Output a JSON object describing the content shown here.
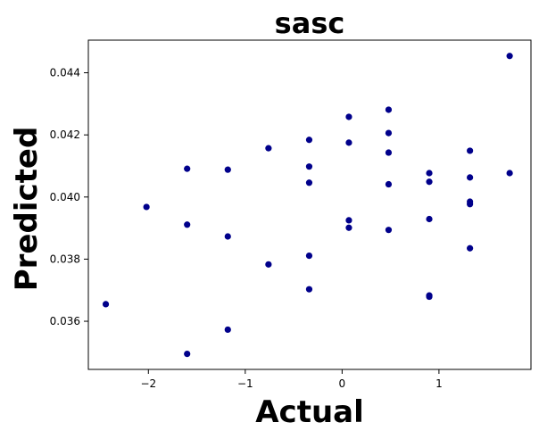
{
  "chart_data": {
    "type": "scatter",
    "title": "sasc",
    "xlabel": "Actual",
    "ylabel": "Predicted",
    "xlim": [
      -2.62,
      1.95
    ],
    "ylim": [
      0.03445,
      0.04505
    ],
    "xticks": [
      -2,
      -1,
      0,
      1
    ],
    "xtick_labels": [
      "−2",
      "−1",
      "0",
      "1"
    ],
    "yticks": [
      0.036,
      0.038,
      0.04,
      0.042,
      0.044
    ],
    "ytick_labels": [
      "0.036",
      "0.038",
      "0.040",
      "0.042",
      "0.044"
    ],
    "grid": false,
    "legend": "none",
    "marker_color": "#00008b",
    "series": [
      {
        "points": [
          {
            "x": -2.44,
            "y": 0.03655
          },
          {
            "x": -2.02,
            "y": 0.03968
          },
          {
            "x": -1.6,
            "y": 0.04091
          },
          {
            "x": -1.6,
            "y": 0.03911
          },
          {
            "x": -1.6,
            "y": 0.03495
          },
          {
            "x": -1.18,
            "y": 0.04088
          },
          {
            "x": -1.18,
            "y": 0.03873
          },
          {
            "x": -1.18,
            "y": 0.03573
          },
          {
            "x": -0.76,
            "y": 0.04157
          },
          {
            "x": -0.76,
            "y": 0.03783
          },
          {
            "x": -0.34,
            "y": 0.04184
          },
          {
            "x": -0.34,
            "y": 0.04098
          },
          {
            "x": -0.34,
            "y": 0.04046
          },
          {
            "x": -0.34,
            "y": 0.03811
          },
          {
            "x": -0.34,
            "y": 0.03703
          },
          {
            "x": 0.07,
            "y": 0.04258
          },
          {
            "x": 0.07,
            "y": 0.04175
          },
          {
            "x": 0.07,
            "y": 0.03925
          },
          {
            "x": 0.07,
            "y": 0.03901
          },
          {
            "x": 0.48,
            "y": 0.04281
          },
          {
            "x": 0.48,
            "y": 0.04206
          },
          {
            "x": 0.48,
            "y": 0.04143
          },
          {
            "x": 0.48,
            "y": 0.04041
          },
          {
            "x": 0.48,
            "y": 0.03894
          },
          {
            "x": 0.9,
            "y": 0.04077
          },
          {
            "x": 0.9,
            "y": 0.04049
          },
          {
            "x": 0.9,
            "y": 0.03929
          },
          {
            "x": 0.9,
            "y": 0.03683
          },
          {
            "x": 0.9,
            "y": 0.03679
          },
          {
            "x": 1.32,
            "y": 0.04149
          },
          {
            "x": 1.32,
            "y": 0.04063
          },
          {
            "x": 1.32,
            "y": 0.03985
          },
          {
            "x": 1.32,
            "y": 0.03977
          },
          {
            "x": 1.32,
            "y": 0.03835
          },
          {
            "x": 1.73,
            "y": 0.04454
          },
          {
            "x": 1.73,
            "y": 0.04077
          }
        ]
      }
    ]
  }
}
